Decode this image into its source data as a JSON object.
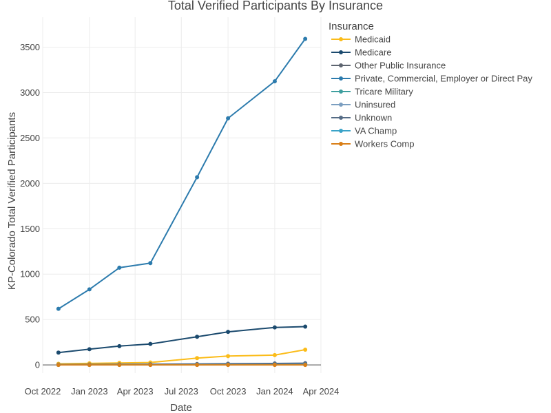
{
  "chart_data": {
    "type": "line",
    "title": "Total Verified Participants By Insurance",
    "xlabel": "Date",
    "ylabel": "KP-Colorado Total Verified Participants",
    "x_ticks": [
      "Oct 2022",
      "Jan 2023",
      "Apr 2023",
      "Jul 2023",
      "Oct 2023",
      "Jan 2024",
      "Apr 2024"
    ],
    "x_range": [
      "2022-10-01",
      "2024-04-01"
    ],
    "y_ticks": [
      0,
      500,
      1000,
      1500,
      2000,
      2500,
      3000,
      3500
    ],
    "ylim": [
      -90,
      3830
    ],
    "grid": true,
    "legend_title": "Insurance",
    "legend_position": "right",
    "x": [
      "2022-11-01",
      "2023-01-01",
      "2023-03-01",
      "2023-05-01",
      "2023-08-01",
      "2023-10-01",
      "2024-01-01",
      "2024-03-01"
    ],
    "series": [
      {
        "name": "Medicaid",
        "color": "#fbbc1a",
        "values": [
          12,
          17,
          22,
          27,
          75,
          97,
          108,
          168
        ]
      },
      {
        "name": "Medicare",
        "color": "#1b4a6e",
        "values": [
          136,
          173,
          207,
          231,
          310,
          364,
          413,
          422
        ]
      },
      {
        "name": "Other Public Insurance",
        "color": "#5d6570",
        "values": [
          1,
          1,
          2,
          2,
          3,
          4,
          5,
          6
        ]
      },
      {
        "name": "Private, Commercial, Employer or Direct Pay",
        "color": "#2c7bad",
        "values": [
          618,
          832,
          1071,
          1121,
          2067,
          2716,
          3124,
          3591
        ]
      },
      {
        "name": "Tricare Military",
        "color": "#3f9f9f",
        "values": [
          2,
          2,
          3,
          3,
          4,
          5,
          6,
          7
        ]
      },
      {
        "name": "Uninsured",
        "color": "#7b9ec0",
        "values": [
          3,
          4,
          5,
          6,
          8,
          10,
          12,
          14
        ]
      },
      {
        "name": "Unknown",
        "color": "#556b85",
        "values": [
          4,
          5,
          6,
          7,
          10,
          13,
          16,
          19
        ]
      },
      {
        "name": "VA Champ",
        "color": "#3aa3c8",
        "values": [
          1,
          1,
          1,
          1,
          2,
          2,
          2,
          3
        ]
      },
      {
        "name": "Workers Comp",
        "color": "#d97e16",
        "values": [
          0,
          0,
          0,
          0,
          0,
          0,
          0,
          0
        ]
      }
    ]
  }
}
